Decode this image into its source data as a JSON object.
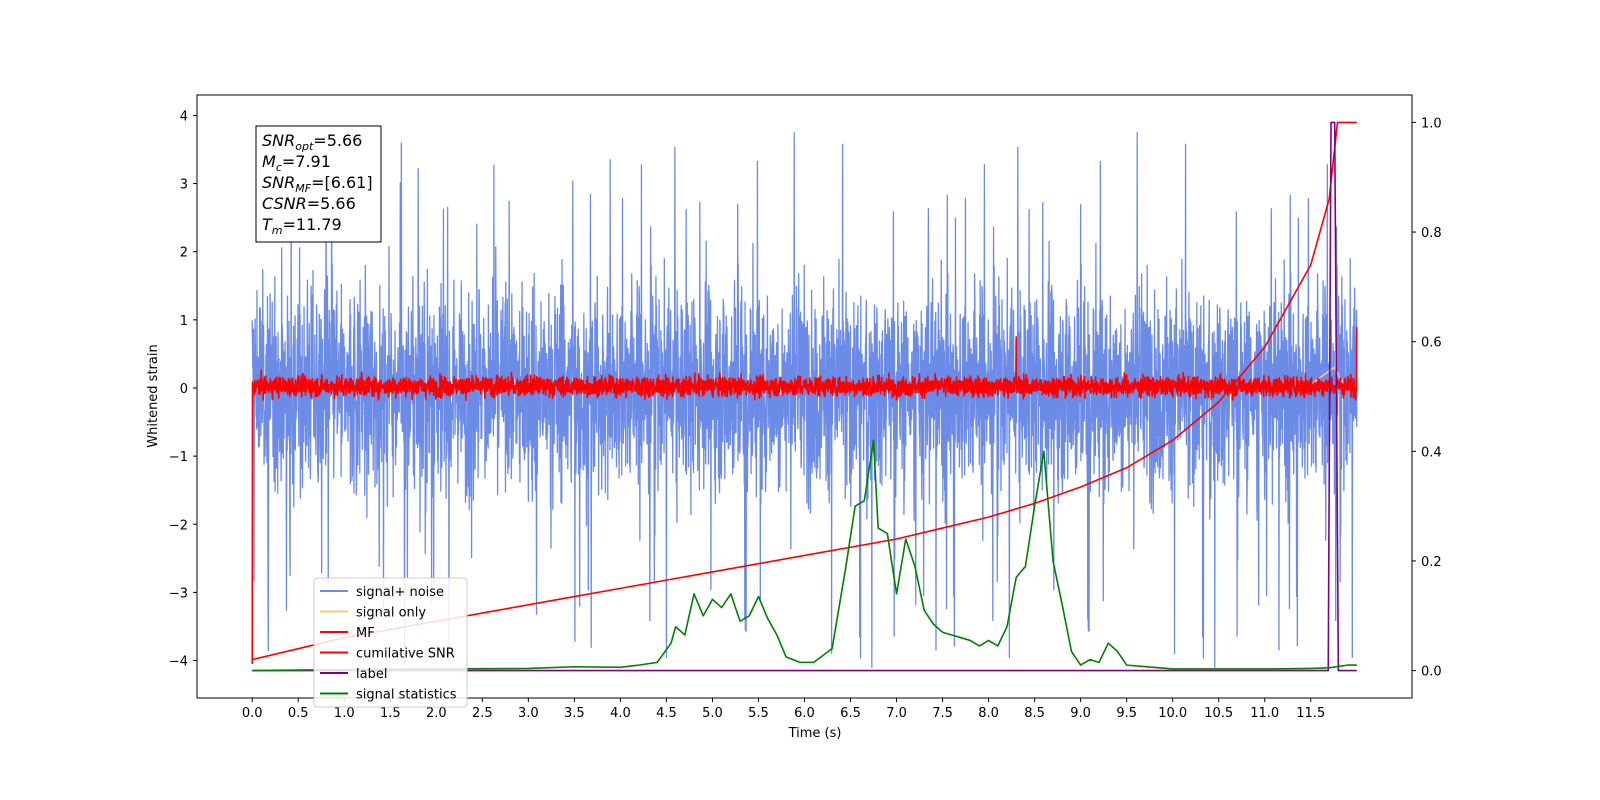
{
  "chart_data": {
    "type": "line",
    "xlabel": "Time (s)",
    "ylabel": "Whitened strain",
    "xlim": [
      -0.6,
      12.6
    ],
    "ylim": [
      -4.55,
      4.3
    ],
    "y2lim": [
      -0.05,
      1.05
    ],
    "x_ticks": [
      "0.0",
      "0.5",
      "1.0",
      "1.5",
      "2.0",
      "2.5",
      "3.0",
      "3.5",
      "4.0",
      "4.5",
      "5.0",
      "5.5",
      "6.0",
      "6.5",
      "7.0",
      "7.5",
      "8.0",
      "8.5",
      "9.0",
      "9.5",
      "10.0",
      "10.5",
      "11.0",
      "11.5"
    ],
    "y_ticks": [
      "4",
      "3",
      "2",
      "1",
      "0",
      "−1",
      "−2",
      "−3",
      "−4"
    ],
    "y2_ticks": [
      "1.0",
      "0.8",
      "0.6",
      "0.4",
      "0.2",
      "0.0"
    ],
    "annotation": {
      "lines": [
        {
          "sym": "SNR",
          "sub": "opt",
          "val": "=5.66"
        },
        {
          "sym": "M",
          "sub": "c",
          "val": "=7.91"
        },
        {
          "sym": "SNR",
          "sub": "MF",
          "val": "=[6.61]"
        },
        {
          "sym": "CSNR",
          "sub": "",
          "val": "=5.66"
        },
        {
          "sym": "T",
          "sub": "m",
          "val": "=11.79"
        }
      ]
    },
    "legend": {
      "placement": "lower-left",
      "entries": [
        {
          "label": "signal+ noise",
          "color": "#6b8be6"
        },
        {
          "label": "signal only",
          "color": "#f5c97a"
        },
        {
          "label": "MF",
          "color": "#ff0000"
        },
        {
          "label": "cumilative SNR",
          "color": "#ff0000"
        },
        {
          "label": "label",
          "color": "#800080"
        },
        {
          "label": "signal statistics",
          "color": "#008000"
        }
      ]
    },
    "series": [
      {
        "name": "signal+ noise",
        "color": "#6b8be6",
        "axis": "left",
        "t_range": [
          0.0,
          12.0
        ],
        "amplitude_band": [
          -2.3,
          2.3
        ],
        "peak_max": 3.85,
        "peak_min": -4.15
      },
      {
        "name": "signal only",
        "color": "#f5c97a",
        "axis": "left",
        "x": [
          11.5,
          11.6,
          11.7,
          11.75,
          11.8,
          11.85
        ],
        "y": [
          0.05,
          0.15,
          0.25,
          0.3,
          0.2,
          0.0
        ]
      },
      {
        "name": "MF",
        "color": "#ff0000",
        "axis": "left",
        "t_range": [
          0.0,
          12.0
        ],
        "amplitude_band": [
          -0.2,
          0.25
        ],
        "spikes": [
          {
            "x": 0.0,
            "y": 1.0
          },
          {
            "x": 0.0,
            "y": -4.05
          },
          {
            "x": 8.3,
            "y": 0.75
          },
          {
            "x": 12.0,
            "y": 0.9
          }
        ]
      },
      {
        "name": "cumilative SNR",
        "color": "#ff0000",
        "axis": "right",
        "x": [
          0.0,
          0.5,
          1.0,
          1.5,
          2.0,
          2.5,
          3.0,
          3.5,
          4.0,
          4.5,
          5.0,
          5.5,
          6.0,
          6.5,
          7.0,
          7.5,
          8.0,
          8.5,
          9.0,
          9.5,
          10.0,
          10.5,
          11.0,
          11.5,
          11.7,
          11.79,
          11.85,
          12.0
        ],
        "y": [
          0.02,
          0.04,
          0.06,
          0.075,
          0.09,
          0.105,
          0.12,
          0.135,
          0.15,
          0.165,
          0.18,
          0.195,
          0.21,
          0.225,
          0.24,
          0.26,
          0.28,
          0.305,
          0.335,
          0.37,
          0.42,
          0.49,
          0.59,
          0.74,
          0.86,
          1.0,
          1.0,
          1.0
        ]
      },
      {
        "name": "label",
        "color": "#800080",
        "axis": "right",
        "x": [
          0.0,
          11.69,
          11.72,
          11.76,
          11.8,
          11.83,
          12.0
        ],
        "y": [
          0.0,
          0.0,
          1.0,
          1.0,
          0.0,
          0.0,
          0.0
        ]
      },
      {
        "name": "signal statistics",
        "color": "#008000",
        "axis": "right",
        "x": [
          0.0,
          1.0,
          2.0,
          3.0,
          3.5,
          4.0,
          4.2,
          4.4,
          4.55,
          4.6,
          4.7,
          4.8,
          4.9,
          5.0,
          5.1,
          5.2,
          5.3,
          5.4,
          5.5,
          5.6,
          5.7,
          5.8,
          5.95,
          6.1,
          6.3,
          6.45,
          6.55,
          6.65,
          6.75,
          6.8,
          6.9,
          7.0,
          7.1,
          7.2,
          7.3,
          7.4,
          7.5,
          7.6,
          7.7,
          7.8,
          7.9,
          8.0,
          8.1,
          8.2,
          8.3,
          8.4,
          8.5,
          8.6,
          8.7,
          8.8,
          8.9,
          9.0,
          9.1,
          9.2,
          9.3,
          9.4,
          9.5,
          10.0,
          11.0,
          11.5,
          11.7,
          11.9,
          12.0
        ],
        "y": [
          0.0,
          0.002,
          0.003,
          0.004,
          0.007,
          0.006,
          0.01,
          0.015,
          0.05,
          0.08,
          0.065,
          0.14,
          0.1,
          0.13,
          0.115,
          0.14,
          0.09,
          0.1,
          0.135,
          0.095,
          0.065,
          0.025,
          0.015,
          0.015,
          0.04,
          0.19,
          0.3,
          0.31,
          0.42,
          0.26,
          0.25,
          0.14,
          0.24,
          0.19,
          0.11,
          0.085,
          0.07,
          0.065,
          0.06,
          0.055,
          0.045,
          0.055,
          0.045,
          0.08,
          0.17,
          0.19,
          0.3,
          0.4,
          0.2,
          0.12,
          0.035,
          0.01,
          0.02,
          0.015,
          0.05,
          0.035,
          0.01,
          0.003,
          0.003,
          0.004,
          0.005,
          0.01,
          0.01
        ]
      }
    ],
    "grid": false
  }
}
